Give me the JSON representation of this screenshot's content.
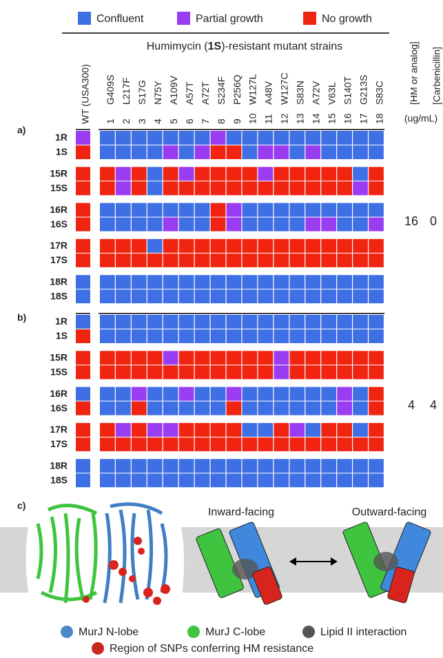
{
  "legend": [
    {
      "label": "Confluent",
      "color": "#3f6fe4"
    },
    {
      "label": "Partial growth",
      "color": "#9a3cf2"
    },
    {
      "label": "No growth",
      "color": "#f02410"
    }
  ],
  "header": {
    "title_pre": "Humimycin (",
    "title_bold": "1S",
    "title_post": ")-resistant mutant strains",
    "wt": "WT (USA300)",
    "strains": [
      {
        "number": "1",
        "mutation": "G409S"
      },
      {
        "number": "2",
        "mutation": "L217F"
      },
      {
        "number": "3",
        "mutation": "S17G"
      },
      {
        "number": "4",
        "mutation": "N75Y"
      },
      {
        "number": "5",
        "mutation": "A109V"
      },
      {
        "number": "6",
        "mutation": "A57T"
      },
      {
        "number": "7",
        "mutation": "A72T"
      },
      {
        "number": "8",
        "mutation": "S234F"
      },
      {
        "number": "9",
        "mutation": "P256Q"
      },
      {
        "number": "10",
        "mutation": "W127L"
      },
      {
        "number": "11",
        "mutation": "A48V"
      },
      {
        "number": "12",
        "mutation": "W127C"
      },
      {
        "number": "13",
        "mutation": "S83N"
      },
      {
        "number": "14",
        "mutation": "A72V"
      },
      {
        "number": "15",
        "mutation": "V63L"
      },
      {
        "number": "16",
        "mutation": "S140T"
      },
      {
        "number": "17",
        "mutation": "G213S"
      },
      {
        "number": "18",
        "mutation": "S83C"
      }
    ],
    "hm_label": "[HM or analog]",
    "carb_label": "[Carbenicillin]",
    "units": "(ug/mL)"
  },
  "panels": [
    {
      "label": "a)",
      "hm": 16,
      "carb": 0,
      "groups": [
        {
          "rows": [
            {
              "label": "1R",
              "wt": "Partial growth",
              "cells": [
                "Confluent",
                "Confluent",
                "Confluent",
                "Confluent",
                "Confluent",
                "Confluent",
                "Confluent",
                "Partial growth",
                "Confluent",
                "Confluent",
                "Confluent",
                "Confluent",
                "Confluent",
                "Confluent",
                "Confluent",
                "Confluent",
                "Confluent",
                "Confluent"
              ]
            },
            {
              "label": "1S",
              "wt": "No growth",
              "cells": [
                "Confluent",
                "Confluent",
                "Confluent",
                "Confluent",
                "Partial growth",
                "Confluent",
                "Partial growth",
                "No growth",
                "No growth",
                "Confluent",
                "Partial growth",
                "Partial growth",
                "Confluent",
                "Partial growth",
                "Confluent",
                "Confluent",
                "Confluent",
                "Confluent"
              ]
            }
          ]
        },
        {
          "rows": [
            {
              "label": "15R",
              "wt": "No growth",
              "cells": [
                "No growth",
                "Partial growth",
                "No growth",
                "Confluent",
                "No growth",
                "Partial growth",
                "No growth",
                "No growth",
                "No growth",
                "No growth",
                "Partial growth",
                "No growth",
                "No growth",
                "No growth",
                "No growth",
                "No growth",
                "Confluent",
                "No growth"
              ]
            },
            {
              "label": "15S",
              "wt": "No growth",
              "cells": [
                "No growth",
                "Partial growth",
                "No growth",
                "Confluent",
                "No growth",
                "No growth",
                "No growth",
                "No growth",
                "No growth",
                "No growth",
                "No growth",
                "No growth",
                "No growth",
                "No growth",
                "No growth",
                "No growth",
                "Partial growth",
                "No growth"
              ]
            }
          ]
        },
        {
          "rows": [
            {
              "label": "16R",
              "wt": "No growth",
              "cells": [
                "Confluent",
                "Confluent",
                "Confluent",
                "Confluent",
                "Confluent",
                "Confluent",
                "Confluent",
                "No growth",
                "Partial growth",
                "Confluent",
                "Confluent",
                "Confluent",
                "Confluent",
                "Confluent",
                "Confluent",
                "Confluent",
                "Confluent",
                "Confluent"
              ]
            },
            {
              "label": "16S",
              "wt": "No growth",
              "cells": [
                "Confluent",
                "Confluent",
                "Confluent",
                "Confluent",
                "Partial growth",
                "Confluent",
                "Confluent",
                "No growth",
                "Partial growth",
                "Confluent",
                "Confluent",
                "Confluent",
                "Confluent",
                "Partial growth",
                "Partial growth",
                "Confluent",
                "Confluent",
                "Partial growth"
              ]
            }
          ]
        },
        {
          "rows": [
            {
              "label": "17R",
              "wt": "No growth",
              "cells": [
                "No growth",
                "No growth",
                "No growth",
                "Confluent",
                "No growth",
                "No growth",
                "No growth",
                "No growth",
                "No growth",
                "No growth",
                "No growth",
                "No growth",
                "No growth",
                "No growth",
                "No growth",
                "No growth",
                "No growth",
                "No growth"
              ]
            },
            {
              "label": "17S",
              "wt": "No growth",
              "cells": [
                "No growth",
                "No growth",
                "No growth",
                "No growth",
                "No growth",
                "No growth",
                "No growth",
                "No growth",
                "No growth",
                "No growth",
                "No growth",
                "No growth",
                "No growth",
                "No growth",
                "No growth",
                "No growth",
                "No growth",
                "No growth"
              ]
            }
          ]
        },
        {
          "rows": [
            {
              "label": "18R",
              "wt": "Confluent",
              "cells": [
                "Confluent",
                "Confluent",
                "Confluent",
                "Confluent",
                "Confluent",
                "Confluent",
                "Confluent",
                "Confluent",
                "Confluent",
                "Confluent",
                "Confluent",
                "Confluent",
                "Confluent",
                "Confluent",
                "Confluent",
                "Confluent",
                "Confluent",
                "Confluent"
              ]
            },
            {
              "label": "18S",
              "wt": "Confluent",
              "cells": [
                "Confluent",
                "Confluent",
                "Confluent",
                "Confluent",
                "Confluent",
                "Confluent",
                "Confluent",
                "Confluent",
                "Confluent",
                "Confluent",
                "Confluent",
                "Confluent",
                "Confluent",
                "Confluent",
                "Confluent",
                "Confluent",
                "Confluent",
                "Confluent"
              ]
            }
          ]
        }
      ]
    },
    {
      "label": "b)",
      "hm": 4,
      "carb": 4,
      "groups": [
        {
          "rows": [
            {
              "label": "1R",
              "wt": "Confluent",
              "cells": [
                "Confluent",
                "Confluent",
                "Confluent",
                "Confluent",
                "Confluent",
                "Confluent",
                "Confluent",
                "Confluent",
                "Confluent",
                "Confluent",
                "Confluent",
                "Confluent",
                "Confluent",
                "Confluent",
                "Confluent",
                "Confluent",
                "Confluent",
                "Confluent"
              ]
            },
            {
              "label": "1S",
              "wt": "No growth",
              "cells": [
                "Confluent",
                "Confluent",
                "Confluent",
                "Confluent",
                "Confluent",
                "Confluent",
                "Confluent",
                "Confluent",
                "Confluent",
                "Confluent",
                "Confluent",
                "Confluent",
                "Confluent",
                "Confluent",
                "Confluent",
                "Confluent",
                "Confluent",
                "Confluent"
              ]
            }
          ]
        },
        {
          "rows": [
            {
              "label": "15R",
              "wt": "No growth",
              "cells": [
                "No growth",
                "No growth",
                "No growth",
                "No growth",
                "Partial growth",
                "No growth",
                "No growth",
                "No growth",
                "No growth",
                "No growth",
                "No growth",
                "Partial growth",
                "No growth",
                "No growth",
                "No growth",
                "No growth",
                "No growth",
                "No growth"
              ]
            },
            {
              "label": "15S",
              "wt": "No growth",
              "cells": [
                "No growth",
                "No growth",
                "No growth",
                "No growth",
                "No growth",
                "No growth",
                "No growth",
                "No growth",
                "No growth",
                "No growth",
                "No growth",
                "Partial growth",
                "No growth",
                "No growth",
                "No growth",
                "No growth",
                "No growth",
                "No growth"
              ]
            }
          ]
        },
        {
          "rows": [
            {
              "label": "16R",
              "wt": "Confluent",
              "cells": [
                "Confluent",
                "Confluent",
                "Partial growth",
                "Confluent",
                "Confluent",
                "Partial growth",
                "Confluent",
                "Confluent",
                "Partial growth",
                "Confluent",
                "Confluent",
                "Confluent",
                "Confluent",
                "Confluent",
                "Confluent",
                "Partial growth",
                "Confluent",
                "No growth"
              ]
            },
            {
              "label": "16S",
              "wt": "No growth",
              "cells": [
                "Confluent",
                "Confluent",
                "No growth",
                "Confluent",
                "Confluent",
                "Confluent",
                "Confluent",
                "Confluent",
                "No growth",
                "Confluent",
                "Confluent",
                "Confluent",
                "Confluent",
                "Confluent",
                "Confluent",
                "Partial growth",
                "Confluent",
                "No growth"
              ]
            }
          ]
        },
        {
          "rows": [
            {
              "label": "17R",
              "wt": "No growth",
              "cells": [
                "No growth",
                "Partial growth",
                "No growth",
                "Partial growth",
                "Partial growth",
                "No growth",
                "No growth",
                "No growth",
                "No growth",
                "Confluent",
                "Confluent",
                "No growth",
                "Partial growth",
                "Confluent",
                "No growth",
                "No growth",
                "Confluent",
                "No growth"
              ]
            },
            {
              "label": "17S",
              "wt": "No growth",
              "cells": [
                "No growth",
                "No growth",
                "No growth",
                "No growth",
                "No growth",
                "No growth",
                "No growth",
                "No growth",
                "No growth",
                "No growth",
                "No growth",
                "No growth",
                "No growth",
                "No growth",
                "No growth",
                "No growth",
                "No growth",
                "No growth"
              ]
            }
          ]
        },
        {
          "rows": [
            {
              "label": "18R",
              "wt": "Confluent",
              "cells": [
                "Confluent",
                "Confluent",
                "Confluent",
                "Confluent",
                "Confluent",
                "Confluent",
                "Confluent",
                "Confluent",
                "Confluent",
                "Confluent",
                "Confluent",
                "Confluent",
                "Confluent",
                "Confluent",
                "Confluent",
                "Confluent",
                "Confluent",
                "Confluent"
              ]
            },
            {
              "label": "18S",
              "wt": "Confluent",
              "cells": [
                "Confluent",
                "Confluent",
                "Confluent",
                "Confluent",
                "Confluent",
                "Confluent",
                "Confluent",
                "Confluent",
                "Confluent",
                "Confluent",
                "Confluent",
                "Confluent",
                "Confluent",
                "Confluent",
                "Confluent",
                "Confluent",
                "Confluent",
                "Confluent"
              ]
            }
          ]
        }
      ]
    }
  ],
  "panel_c": {
    "label": "c)",
    "inward": "Inward-facing",
    "outward": "Outward-facing",
    "legend": [
      {
        "label": "MurJ N-lobe",
        "color": "#4a88c8"
      },
      {
        "label": "MurJ C-lobe",
        "color": "#3ec43e"
      },
      {
        "label": "Lipid II interaction",
        "color": "#555555"
      },
      {
        "label": "Region of SNPs conferring HM resistance",
        "color": "#c8281c"
      }
    ]
  }
}
